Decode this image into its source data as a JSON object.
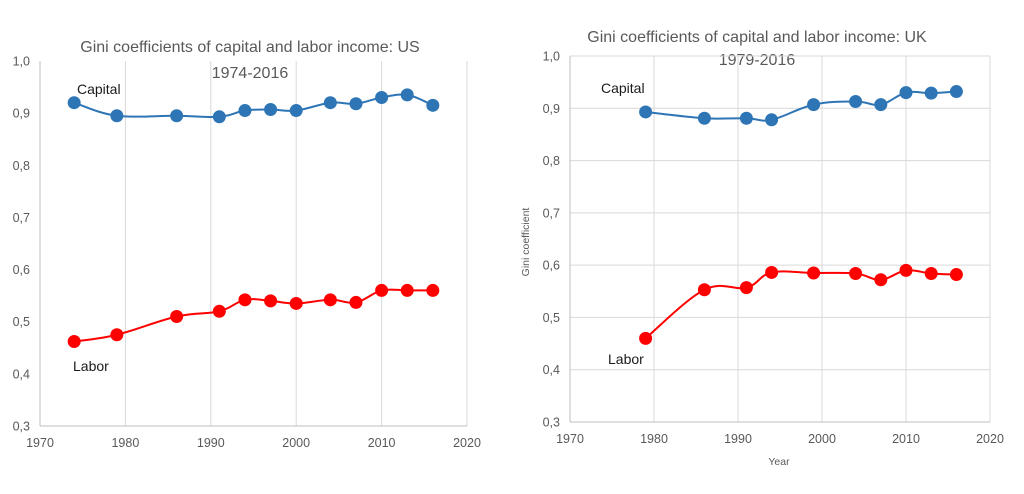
{
  "chart_data": [
    {
      "type": "line",
      "title": "Gini coefficients of capital and labor income: US",
      "subtitle": "1974-2016",
      "xlabel": "",
      "ylabel": "",
      "xlim": [
        1970,
        2020
      ],
      "ylim": [
        0.3,
        1.0
      ],
      "xticks": [
        1970,
        1980,
        1990,
        2000,
        2010,
        2020
      ],
      "xtick_labels": [
        "1970",
        "1980",
        "1990",
        "2000",
        "2010",
        "2020"
      ],
      "yticks": [
        0.3,
        0.4,
        0.5,
        0.6,
        0.7,
        0.8,
        0.9,
        1.0
      ],
      "ytick_labels": [
        "0,3",
        "0,4",
        "0,5",
        "0,6",
        "0,7",
        "0,8",
        "0,9",
        "1,0"
      ],
      "grid": "vertical",
      "series": [
        {
          "name": "Capital",
          "color": "#2e75b6",
          "x": [
            1974,
            1979,
            1986,
            1991,
            1994,
            1997,
            2000,
            2004,
            2007,
            2010,
            2013,
            2016
          ],
          "y": [
            0.92,
            0.895,
            0.895,
            0.893,
            0.905,
            0.907,
            0.905,
            0.92,
            0.918,
            0.93,
            0.935,
            0.915
          ]
        },
        {
          "name": "Labor",
          "color": "#ff0000",
          "x": [
            1974,
            1979,
            1986,
            1991,
            1994,
            1997,
            2000,
            2004,
            2007,
            2010,
            2013,
            2016
          ],
          "y": [
            0.462,
            0.475,
            0.51,
            0.52,
            0.542,
            0.54,
            0.535,
            0.542,
            0.537,
            0.56,
            0.56,
            0.56
          ]
        }
      ]
    },
    {
      "type": "line",
      "title": "Gini coefficients of capital and labor income: UK",
      "subtitle": "1979-2016",
      "xlabel": "Year",
      "ylabel": "Gini coefficient",
      "xlim": [
        1970,
        2020
      ],
      "ylim": [
        0.3,
        1.0
      ],
      "xticks": [
        1970,
        1980,
        1990,
        2000,
        2010,
        2020
      ],
      "xtick_labels": [
        "1970",
        "1980",
        "1990",
        "2000",
        "2010",
        "2020"
      ],
      "yticks": [
        0.3,
        0.4,
        0.5,
        0.6,
        0.7,
        0.8,
        0.9,
        1.0
      ],
      "ytick_labels": [
        "0,3",
        "0,4",
        "0,5",
        "0,6",
        "0,7",
        "0,8",
        "0,9",
        "1,0"
      ],
      "grid": "both",
      "series": [
        {
          "name": "Capital",
          "color": "#2e75b6",
          "x": [
            1979,
            1986,
            1991,
            1994,
            1999,
            2004,
            2007,
            2010,
            2013,
            2016
          ],
          "y": [
            0.893,
            0.881,
            0.881,
            0.878,
            0.907,
            0.913,
            0.907,
            0.93,
            0.929,
            0.932
          ]
        },
        {
          "name": "Labor",
          "color": "#ff0000",
          "x": [
            1979,
            1986,
            1991,
            1994,
            1999,
            2004,
            2007,
            2010,
            2013,
            2016
          ],
          "y": [
            0.46,
            0.553,
            0.557,
            0.586,
            0.585,
            0.584,
            0.572,
            0.59,
            0.584,
            0.582
          ]
        }
      ]
    }
  ]
}
